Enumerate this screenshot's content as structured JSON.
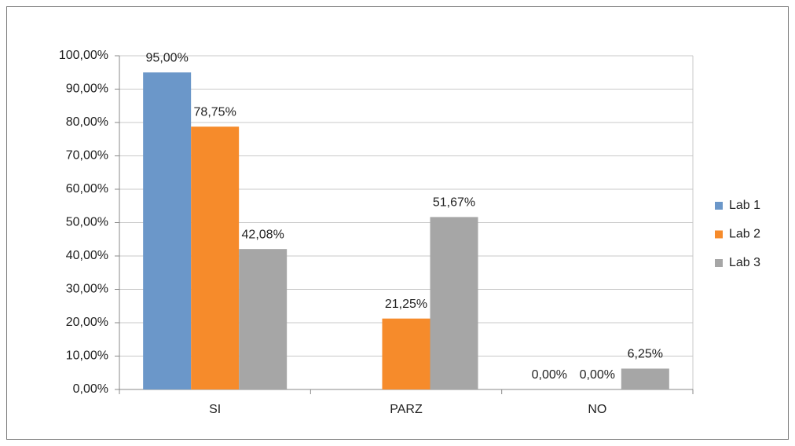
{
  "chart_data": {
    "type": "bar",
    "categories": [
      "SI",
      "PARZ",
      "NO"
    ],
    "series": [
      {
        "name": "Lab 1",
        "color": "#6b97c9",
        "values": [
          95.0,
          null,
          0.0
        ],
        "value_labels": [
          "95,00%",
          null,
          "0,00%"
        ]
      },
      {
        "name": "Lab 2",
        "color": "#f68b2b",
        "values": [
          78.75,
          21.25,
          0.0
        ],
        "value_labels": [
          "78,75%",
          "21,25%",
          "0,00%"
        ]
      },
      {
        "name": "Lab 3",
        "color": "#a6a6a6",
        "values": [
          42.08,
          51.67,
          6.25
        ],
        "value_labels": [
          "42,08%",
          "51,67%",
          "6,25%"
        ]
      }
    ],
    "ylim": [
      0,
      100
    ],
    "yticks": [
      {
        "value": 0,
        "label": "0,00%"
      },
      {
        "value": 10,
        "label": "10,00%"
      },
      {
        "value": 20,
        "label": "20,00%"
      },
      {
        "value": 30,
        "label": "30,00%"
      },
      {
        "value": 40,
        "label": "40,00%"
      },
      {
        "value": 50,
        "label": "50,00%"
      },
      {
        "value": 60,
        "label": "60,00%"
      },
      {
        "value": 70,
        "label": "70,00%"
      },
      {
        "value": 80,
        "label": "80,00%"
      },
      {
        "value": 90,
        "label": "90,00%"
      },
      {
        "value": 100,
        "label": "100,00%"
      }
    ],
    "grid": true,
    "legend": "right"
  }
}
